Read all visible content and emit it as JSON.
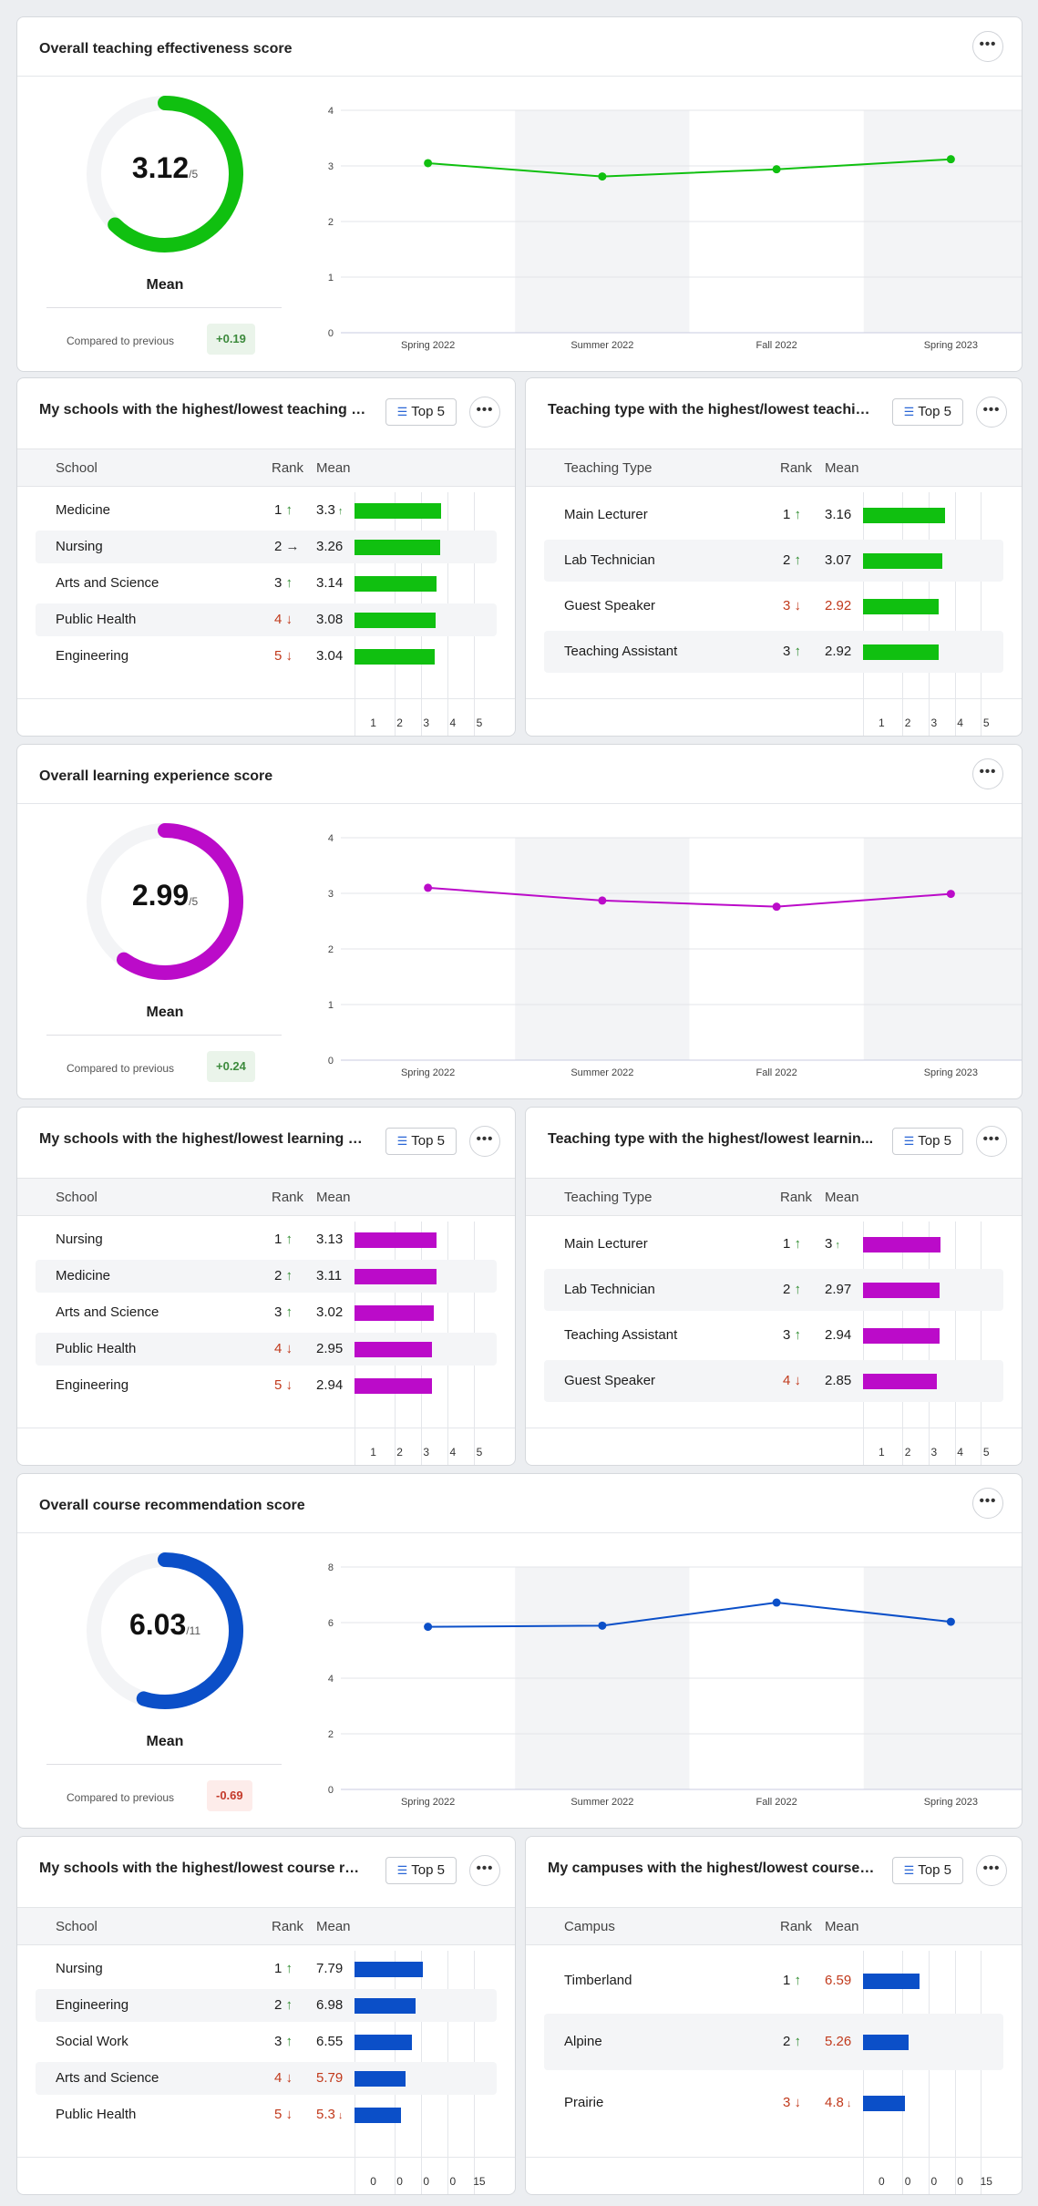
{
  "colors": {
    "teaching": "#10c010",
    "learning": "#bb0bc9",
    "recommend": "#0b4fc8",
    "track": "#f3f4f6"
  },
  "more_label": "•••",
  "top5_label": "Top 5",
  "teaching_score": {
    "title": "Overall teaching effectiveness score",
    "value": "3.12",
    "max_label": "/5",
    "value_num": 3.12,
    "max_num": 5,
    "label": "Mean",
    "compared_label": "Compared to previous",
    "delta": "+0.19",
    "trend": {
      "x": [
        "Spring 2022",
        "Summer 2022",
        "Fall 2022",
        "Spring 2023"
      ],
      "y": [
        3.05,
        2.81,
        2.94,
        3.12
      ],
      "ylim": [
        0,
        4
      ],
      "yticks": [
        "0",
        "1",
        "2",
        "3",
        "4"
      ]
    }
  },
  "teaching_schools": {
    "title": "My schools with the highest/lowest teaching e...",
    "col_name": "School",
    "col_rank": "Rank",
    "col_mean": "Mean",
    "max": 5,
    "ticks": [
      "1",
      "2",
      "3",
      "4",
      "5"
    ],
    "rows": [
      {
        "name": "Medicine",
        "rank": "1",
        "dir": "up",
        "arrow": "↑",
        "mean": "3.3",
        "mean_arrow": "↑",
        "value": 3.3
      },
      {
        "name": "Nursing",
        "rank": "2",
        "dir": "flat",
        "arrow": "→",
        "mean": "3.26",
        "mean_arrow": "",
        "value": 3.26
      },
      {
        "name": "Arts and Science",
        "rank": "3",
        "dir": "up",
        "arrow": "↑",
        "mean": "3.14",
        "mean_arrow": "",
        "value": 3.14
      },
      {
        "name": "Public Health",
        "rank": "4",
        "dir": "down",
        "arrow": "↓",
        "mean": "3.08",
        "mean_arrow": "",
        "value": 3.08
      },
      {
        "name": "Engineering",
        "rank": "5",
        "dir": "down",
        "arrow": "↓",
        "mean": "3.04",
        "mean_arrow": "",
        "value": 3.04
      }
    ]
  },
  "teaching_types": {
    "title": "Teaching type with the highest/lowest teachin...",
    "col_name": "Teaching Type",
    "col_rank": "Rank",
    "col_mean": "Mean",
    "max": 5,
    "ticks": [
      "1",
      "2",
      "3",
      "4",
      "5"
    ],
    "rows": [
      {
        "name": "Main Lecturer",
        "rank": "1",
        "dir": "up",
        "arrow": "↑",
        "mean": "3.16",
        "mean_arrow": "",
        "value": 3.16
      },
      {
        "name": "Lab Technician",
        "rank": "2",
        "dir": "up",
        "arrow": "↑",
        "mean": "3.07",
        "mean_arrow": "",
        "value": 3.07
      },
      {
        "name": "Guest Speaker",
        "rank": "3",
        "dir": "down",
        "arrow": "↓",
        "mean": "2.92",
        "mean_arrow": "",
        "value": 2.92,
        "red": true
      },
      {
        "name": "Teaching Assistant",
        "rank": "3",
        "dir": "up",
        "arrow": "↑",
        "mean": "2.92",
        "mean_arrow": "",
        "value": 2.92
      }
    ]
  },
  "learning_score": {
    "title": "Overall learning experience score",
    "value": "2.99",
    "max_label": "/5",
    "value_num": 2.99,
    "max_num": 5,
    "label": "Mean",
    "compared_label": "Compared to previous",
    "delta": "+0.24",
    "trend": {
      "x": [
        "Spring 2022",
        "Summer 2022",
        "Fall 2022",
        "Spring 2023"
      ],
      "y": [
        3.1,
        2.87,
        2.76,
        2.99
      ],
      "ylim": [
        0,
        4
      ],
      "yticks": [
        "0",
        "1",
        "2",
        "3",
        "4"
      ]
    }
  },
  "learning_schools": {
    "title": "My schools with the highest/lowest learning e...",
    "col_name": "School",
    "col_rank": "Rank",
    "col_mean": "Mean",
    "max": 5,
    "ticks": [
      "1",
      "2",
      "3",
      "4",
      "5"
    ],
    "rows": [
      {
        "name": "Nursing",
        "rank": "1",
        "dir": "up",
        "arrow": "↑",
        "mean": "3.13",
        "mean_arrow": "",
        "value": 3.13
      },
      {
        "name": "Medicine",
        "rank": "2",
        "dir": "up",
        "arrow": "↑",
        "mean": "3.11",
        "mean_arrow": "",
        "value": 3.11
      },
      {
        "name": "Arts and Science",
        "rank": "3",
        "dir": "up",
        "arrow": "↑",
        "mean": "3.02",
        "mean_arrow": "",
        "value": 3.02
      },
      {
        "name": "Public Health",
        "rank": "4",
        "dir": "down",
        "arrow": "↓",
        "mean": "2.95",
        "mean_arrow": "",
        "value": 2.95
      },
      {
        "name": "Engineering",
        "rank": "5",
        "dir": "down",
        "arrow": "↓",
        "mean": "2.94",
        "mean_arrow": "",
        "value": 2.94
      }
    ]
  },
  "learning_types": {
    "title": "Teaching type with the highest/lowest learnin...",
    "col_name": "Teaching Type",
    "col_rank": "Rank",
    "col_mean": "Mean",
    "max": 5,
    "ticks": [
      "1",
      "2",
      "3",
      "4",
      "5"
    ],
    "rows": [
      {
        "name": "Main Lecturer",
        "rank": "1",
        "dir": "up",
        "arrow": "↑",
        "mean": "3",
        "mean_arrow": "↑",
        "value": 3
      },
      {
        "name": "Lab Technician",
        "rank": "2",
        "dir": "up",
        "arrow": "↑",
        "mean": "2.97",
        "mean_arrow": "",
        "value": 2.97
      },
      {
        "name": "Teaching Assistant",
        "rank": "3",
        "dir": "up",
        "arrow": "↑",
        "mean": "2.94",
        "mean_arrow": "",
        "value": 2.94
      },
      {
        "name": "Guest Speaker",
        "rank": "4",
        "dir": "down",
        "arrow": "↓",
        "mean": "2.85",
        "mean_arrow": "",
        "value": 2.85
      }
    ]
  },
  "recommend_score": {
    "title": "Overall course recommendation score",
    "value": "6.03",
    "max_label": "/11",
    "value_num": 6.03,
    "max_num": 11,
    "label": "Mean",
    "compared_label": "Compared to previous",
    "delta": "-0.69",
    "trend": {
      "x": [
        "Spring 2022",
        "Summer 2022",
        "Fall 2022",
        "Spring 2023"
      ],
      "y": [
        5.85,
        5.89,
        6.72,
        6.03
      ],
      "ylim": [
        0,
        8
      ],
      "yticks": [
        "0",
        "2",
        "4",
        "6",
        "8"
      ]
    }
  },
  "recommend_schools": {
    "title": "My schools with the highest/lowest course rec...",
    "col_name": "School",
    "col_rank": "Rank",
    "col_mean": "Mean",
    "max": 15,
    "ticks": [
      "0",
      "0",
      "0",
      "0",
      "15"
    ],
    "rows": [
      {
        "name": "Nursing",
        "rank": "1",
        "dir": "up",
        "arrow": "↑",
        "mean": "7.79",
        "mean_arrow": "",
        "value": 7.79
      },
      {
        "name": "Engineering",
        "rank": "2",
        "dir": "up",
        "arrow": "↑",
        "mean": "6.98",
        "mean_arrow": "",
        "value": 6.98
      },
      {
        "name": "Social Work",
        "rank": "3",
        "dir": "up",
        "arrow": "↑",
        "mean": "6.55",
        "mean_arrow": "",
        "value": 6.55
      },
      {
        "name": "Arts and Science",
        "rank": "4",
        "dir": "down",
        "arrow": "↓",
        "mean": "5.79",
        "mean_arrow": "",
        "value": 5.79,
        "red": true
      },
      {
        "name": "Public Health",
        "rank": "5",
        "dir": "down",
        "arrow": "↓",
        "mean": "5.3",
        "mean_arrow": "↓",
        "value": 5.3,
        "red": true
      }
    ]
  },
  "recommend_campuses": {
    "title": "My campuses with the highest/lowest course r...",
    "col_name": "Campus",
    "col_rank": "Rank",
    "col_mean": "Mean",
    "max": 15,
    "ticks": [
      "0",
      "0",
      "0",
      "0",
      "15"
    ],
    "rows": [
      {
        "name": "Timberland",
        "rank": "1",
        "dir": "up",
        "arrow": "↑",
        "mean": "6.59",
        "mean_arrow": "",
        "value": 6.59,
        "red": true
      },
      {
        "name": "Alpine",
        "rank": "2",
        "dir": "up",
        "arrow": "↑",
        "mean": "5.26",
        "mean_arrow": "",
        "value": 5.26,
        "red": true
      },
      {
        "name": "Prairie",
        "rank": "3",
        "dir": "down",
        "arrow": "↓",
        "mean": "4.8",
        "mean_arrow": "↓",
        "value": 4.8,
        "red": true
      }
    ]
  }
}
